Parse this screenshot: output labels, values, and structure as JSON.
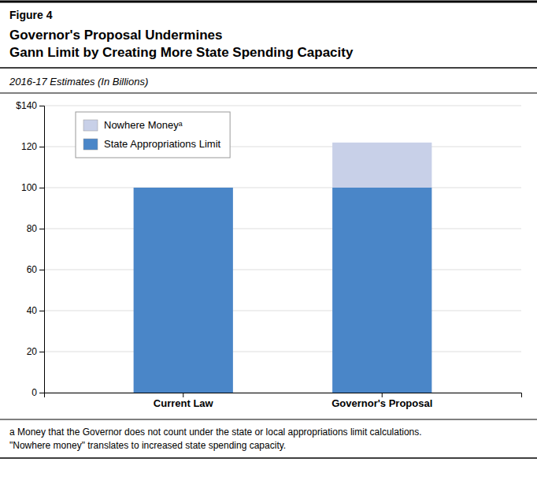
{
  "chart_data": {
    "type": "bar",
    "stacked": true,
    "title": "Governor's Proposal Undermines\nGann Limit by Creating More State Spending Capacity",
    "subtitle": "2016-17 Estimates (In Billions)",
    "annotations": [
      "Figure 4",
      "a Money that the Governor does not count under the state or local appropriations limit calculations.\n\"Nowhere money\" translates to increased state spending capacity."
    ],
    "categories": [
      "Current Law",
      "Governor's Proposal"
    ],
    "series": [
      {
        "name": "State Appropriations Limit",
        "color": "#4A86C8",
        "values": [
          100,
          100
        ]
      },
      {
        "name": "Nowhere Moneyᵃ",
        "color": "#C8D0E8",
        "values": [
          0,
          22
        ]
      }
    ],
    "ylim": [
      0,
      140
    ],
    "yticks": [
      0,
      20,
      40,
      60,
      80,
      100,
      120,
      {
        "value": 140,
        "label": "$140"
      }
    ],
    "grid": true,
    "legend": "upper left"
  }
}
